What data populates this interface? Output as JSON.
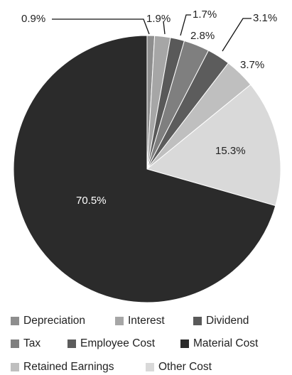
{
  "chart_data": {
    "type": "pie",
    "title": "",
    "legend_position": "bottom",
    "slices": [
      {
        "name": "Depreciation",
        "value": 0.9,
        "label": "0.9%",
        "color": "#8e8e8e"
      },
      {
        "name": "Interest",
        "value": 1.9,
        "label": "1.9%",
        "color": "#a6a6a6"
      },
      {
        "name": "Dividend",
        "value": 1.7,
        "label": "1.7%",
        "color": "#595959"
      },
      {
        "name": "Tax",
        "value": 3.1,
        "label": "3.1%",
        "color": "#7f7f7f"
      },
      {
        "name": "Employee Cost",
        "value": 2.8,
        "label": "2.8%",
        "color": "#5c5c5c"
      },
      {
        "name": "Retained Earnings",
        "value": 3.7,
        "label": "3.7%",
        "color": "#bfbfbf"
      },
      {
        "name": "Other Cost",
        "value": 15.3,
        "label": "15.3%",
        "color": "#d9d9d9"
      },
      {
        "name": "Material Cost",
        "value": 70.5,
        "label": "70.5%",
        "color": "#2b2b2b"
      }
    ],
    "legend_order": [
      [
        "Depreciation",
        "Interest",
        "Dividend"
      ],
      [
        "Tax",
        "Employee Cost",
        "Material Cost"
      ],
      [
        "Retained Earnings",
        "Other Cost"
      ]
    ]
  }
}
